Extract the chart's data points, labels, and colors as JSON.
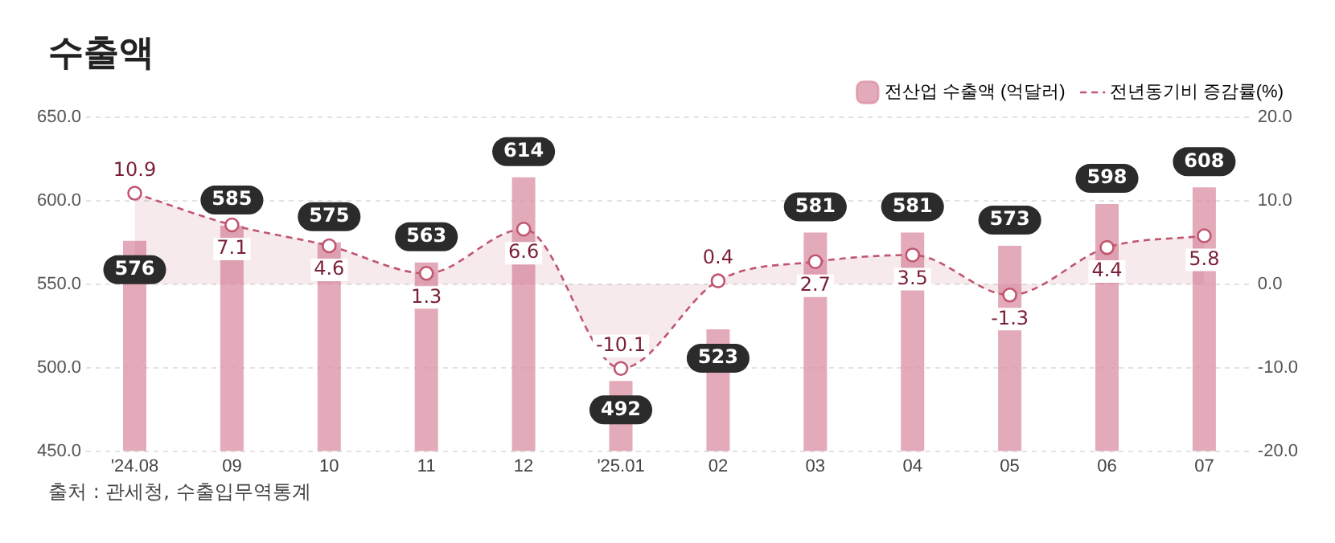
{
  "chart_data": {
    "type": "bar",
    "title": "수출액",
    "categories": [
      "'24.08",
      "09",
      "10",
      "11",
      "12",
      "'25.01",
      "02",
      "03",
      "04",
      "05",
      "06",
      "07"
    ],
    "series": [
      {
        "name": "전산업 수출액 (억달러)",
        "color": "#d98fa3",
        "values": [
          576,
          585,
          575,
          563,
          614,
          492,
          523,
          581,
          581,
          573,
          598,
          608
        ]
      },
      {
        "name": "전년동기비 증감률(%)",
        "type": "area",
        "axis": "y2",
        "color": "#c0566f",
        "line_style": "dashed",
        "marker": "circle",
        "values": [
          10.9,
          7.1,
          4.6,
          1.3,
          6.6,
          -10.1,
          0.4,
          2.7,
          3.5,
          -1.3,
          4.4,
          5.8
        ]
      }
    ],
    "ylim": [
      450,
      650
    ],
    "yticks": [
      {
        "value": 450,
        "label": "450.0"
      },
      {
        "value": 500,
        "label": "500.0"
      },
      {
        "value": 550,
        "label": "550.0"
      },
      {
        "value": 600,
        "label": "600.0"
      },
      {
        "value": 650,
        "label": "650.0"
      }
    ],
    "y2lim": [
      -20,
      20
    ],
    "y2ticks": [
      {
        "value": -20,
        "label": "-20.0"
      },
      {
        "value": -10,
        "label": "-10.0"
      },
      {
        "value": 0,
        "label": "0.0"
      },
      {
        "value": 10,
        "label": "10.0"
      },
      {
        "value": 20,
        "label": "20.0"
      }
    ],
    "grid": "y",
    "legend": "top right",
    "data_labels": true,
    "annotations": [
      "출처 : 관세청, 수출입무역통계"
    ]
  }
}
